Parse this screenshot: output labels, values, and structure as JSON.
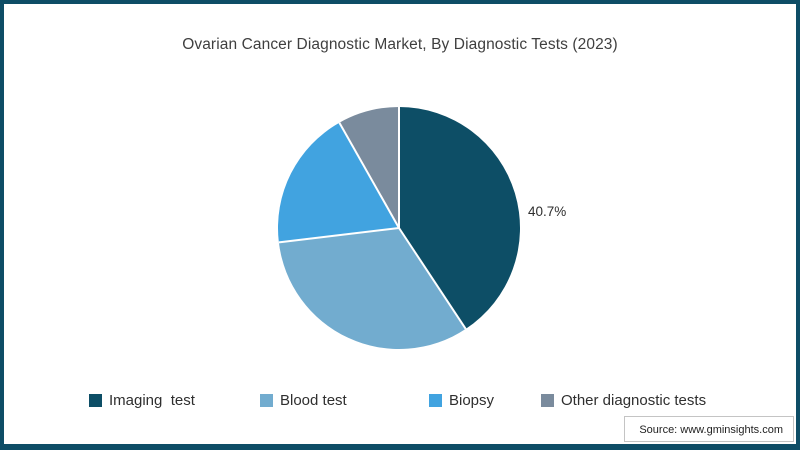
{
  "frame": {
    "border_color": "#0e4d66",
    "background_color": "#ffffff"
  },
  "title": "Ovarian Cancer Diagnostic Market, By Diagnostic Tests (2023)",
  "source": "Source: www.gminsights.com",
  "chart_data": {
    "type": "pie",
    "title": "Ovarian Cancer Diagnostic Market, By Diagnostic Tests (2023)",
    "start_angle_deg": 0,
    "direction": "clockwise",
    "separator_color": "#ffffff",
    "legend_position": "bottom",
    "slices": [
      {
        "label": "Imaging  test",
        "value": 40.7,
        "color": "#0d4e66",
        "data_label": "40.7%"
      },
      {
        "label": "Blood test",
        "value": 32.4,
        "color": "#72accf",
        "data_label": ""
      },
      {
        "label": "Biopsy",
        "value": 18.7,
        "color": "#41a3e0",
        "data_label": ""
      },
      {
        "label": "Other diagnostic tests",
        "value": 8.2,
        "color": "#7a8b9d",
        "data_label": ""
      }
    ]
  }
}
